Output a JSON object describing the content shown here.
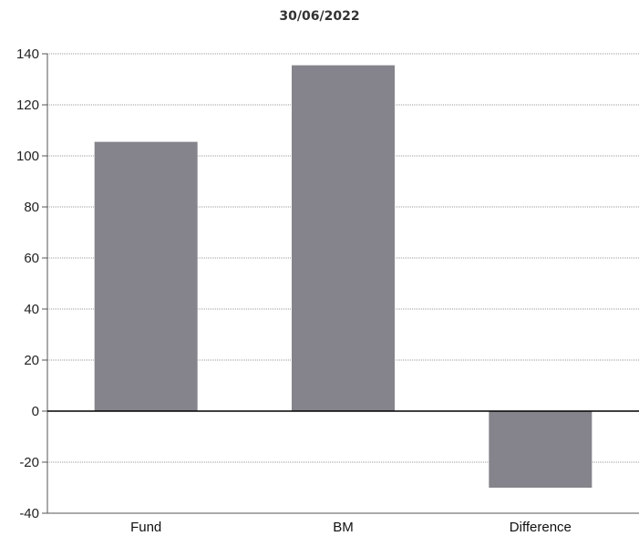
{
  "chart_data": {
    "type": "bar",
    "title": "30/06/2022",
    "xlabel": "",
    "ylabel": "",
    "categories": [
      "Fund",
      "BM",
      "Difference"
    ],
    "values": [
      105.5,
      135.5,
      -30
    ],
    "ylim": [
      -40,
      140
    ],
    "yticks": [
      "140",
      "120",
      "100",
      "80",
      "60",
      "40",
      "20",
      "0",
      "-20",
      "-40"
    ],
    "grid": true,
    "bar_color": "#85848c"
  }
}
